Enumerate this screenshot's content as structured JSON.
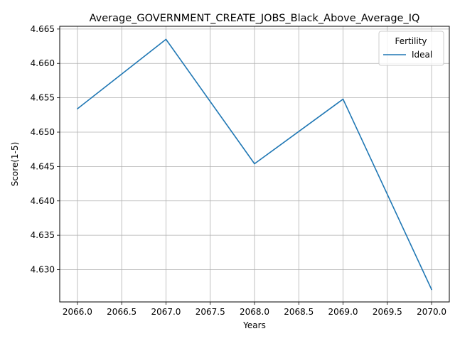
{
  "chart_data": {
    "type": "line",
    "title": "Average_GOVERNMENT_CREATE_JOBS_Black_Above_Average_IQ",
    "xlabel": "Years",
    "ylabel": "Score(1-5)",
    "x": [
      2066,
      2067,
      2068,
      2069,
      2070
    ],
    "series": [
      {
        "name": "Ideal",
        "values": [
          4.6534,
          4.6635,
          4.6454,
          4.6548,
          4.6271
        ],
        "color": "#1f77b4"
      }
    ],
    "xlim": [
      2065.8,
      2070.2
    ],
    "ylim": [
      4.6253,
      4.6654
    ],
    "xticks": [
      2066.0,
      2066.5,
      2067.0,
      2067.5,
      2068.0,
      2068.5,
      2069.0,
      2069.5,
      2070.0
    ],
    "xtick_labels": [
      "2066.0",
      "2066.5",
      "2067.0",
      "2067.5",
      "2068.0",
      "2068.5",
      "2069.0",
      "2069.5",
      "2070.0"
    ],
    "yticks": [
      4.63,
      4.635,
      4.64,
      4.645,
      4.65,
      4.655,
      4.66,
      4.665
    ],
    "ytick_labels": [
      "4.630",
      "4.635",
      "4.640",
      "4.645",
      "4.650",
      "4.655",
      "4.660",
      "4.665"
    ],
    "grid": true,
    "legend": {
      "title": "Fertility",
      "placement": "top-right"
    }
  }
}
